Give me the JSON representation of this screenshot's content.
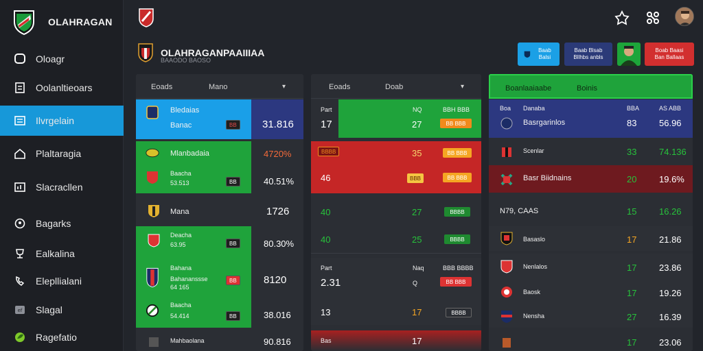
{
  "brand": {
    "name": "OLAHRAGAN"
  },
  "sidebar": {
    "items": [
      {
        "label": "Oloagr",
        "icon": "chat-icon"
      },
      {
        "label": "Oolanltieoars",
        "icon": "document-icon"
      },
      {
        "label": "Ilvrgelain",
        "icon": "list-icon",
        "active": true
      },
      {
        "label": "Plaltaragia",
        "icon": "home-icon"
      },
      {
        "label": "Slacracllen",
        "icon": "chart-icon"
      },
      {
        "label": "Bagarks",
        "icon": "person-icon"
      },
      {
        "label": "Ealkalina",
        "icon": "trophy-icon"
      },
      {
        "label": "Elepllialani",
        "icon": "phone-icon"
      },
      {
        "label": "Slagal",
        "icon": "tag-icon"
      },
      {
        "label": "Ragefatio",
        "icon": "leaf-icon"
      }
    ]
  },
  "header": {
    "title": "OLAHRAGANPAAIIIAA",
    "subtitle": "BAAODO BAOSO",
    "buttons": [
      {
        "text": "Baab Balsi",
        "color": "#1ba0e6"
      },
      {
        "text": "Baab Blsab Bllhbs anbls",
        "color": "#2b3a78"
      },
      {
        "text": "Boab Baasi Ban Ballaas",
        "color": "#d22f2f"
      }
    ]
  },
  "panel1": {
    "head": [
      "Eoads",
      "Mano"
    ],
    "rows": [
      {
        "name": "Bledaias",
        "sub": "Banac",
        "chip": "BB",
        "value": "31.816"
      },
      {
        "name": "Mlanbadaia",
        "value": "4720%"
      },
      {
        "name": "Baacha",
        "sub": "53.513",
        "chip": "BB",
        "value": "40.51%"
      },
      {
        "name": "Mana",
        "value": "1726"
      },
      {
        "name": "Deacha",
        "sub": "63.95",
        "chip": "BB",
        "value": "80.30%"
      },
      {
        "name": "Bahana",
        "sub": "Bahananssse",
        "sub2": "64 165",
        "chip": "BB",
        "value": "8120"
      },
      {
        "name": "Baacha",
        "sub": "54.414",
        "chip": "BB",
        "value": "38.016"
      },
      {
        "name": "Mahbaolana",
        "value": "90.816"
      }
    ]
  },
  "panel2": {
    "head": [
      "Eoads",
      "Doab"
    ],
    "rows": [
      {
        "label": "Part",
        "a": "17",
        "b": "NQ",
        "c": "27",
        "d": "BBH BBB",
        "chip": "BB BBB"
      },
      {
        "label": "BBBB",
        "a": "46",
        "c": "35",
        "chip1": "BBB",
        "chip2": "BB BBB"
      },
      {
        "a": "40",
        "c": "27",
        "chip": "BBBB"
      },
      {
        "a": "40",
        "c": "25",
        "chip": "BBBB"
      },
      {
        "label": "Part",
        "a": "2.31",
        "b": "Naq",
        "c": "Q",
        "d": "BBB BBBB",
        "chip": "BB BBB"
      },
      {
        "a": "13",
        "c": "17",
        "chip": "BBBB"
      },
      {
        "label": "Bas",
        "c": "17"
      }
    ]
  },
  "panel3": {
    "head": [
      "Boanlaaiaabe",
      "Boinis"
    ],
    "rows": [
      {
        "h1": "Boa",
        "h2": "Danaba",
        "h3": "BBA",
        "h4": "AS ABB",
        "name": "Basrgarinlos",
        "a": "83",
        "b": "56.96"
      },
      {
        "name": "Scenlar",
        "a": "33",
        "b": "74.136"
      },
      {
        "name": "Basr Biidnains",
        "a": "20",
        "b": "19.6%"
      },
      {
        "name": "N79, CAAS",
        "a": "15",
        "b": "16.26"
      },
      {
        "name": "Basaslo",
        "a": "17",
        "b": "21.86"
      },
      {
        "name": "Nenlalos",
        "a": "17",
        "b": "23.86"
      },
      {
        "name": "Baosk",
        "a": "17",
        "b": "19.26"
      },
      {
        "name": "Nensha",
        "a": "27",
        "b": "16.39"
      },
      {
        "a": "17",
        "b": "23.06"
      }
    ]
  }
}
